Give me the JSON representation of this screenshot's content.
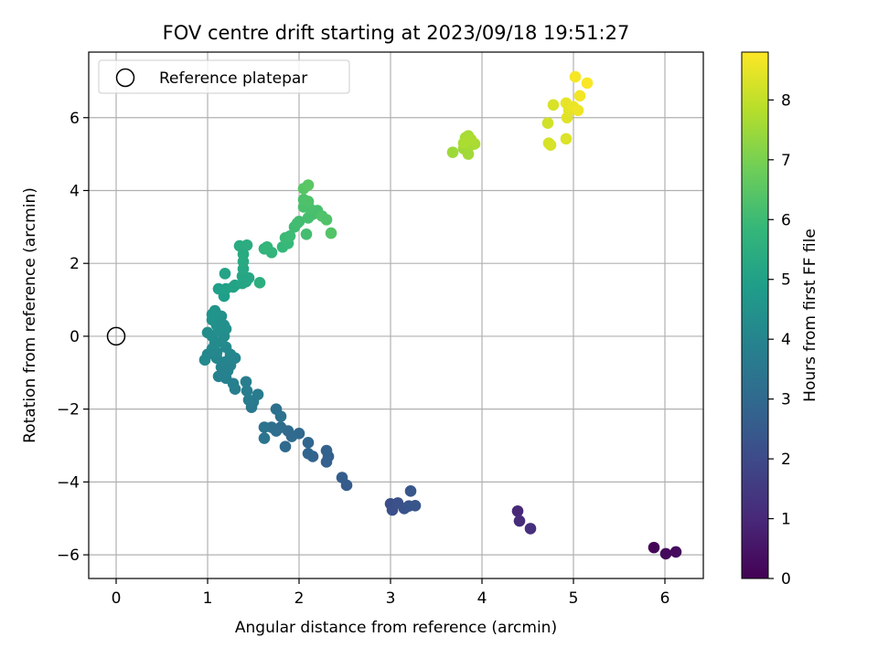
{
  "chart_data": {
    "type": "scatter",
    "title": "FOV centre drift starting at 2023/09/18 19:51:27",
    "xlabel": "Angular distance from reference (arcmin)",
    "ylabel": "Rotation from reference (arcmin)",
    "xlim": [
      -0.3,
      6.42
    ],
    "ylim": [
      -6.65,
      7.8
    ],
    "xticks": [
      0,
      1,
      2,
      3,
      4,
      5,
      6
    ],
    "yticks": [
      -6,
      -4,
      -2,
      0,
      2,
      4,
      6
    ],
    "grid": true,
    "legend": {
      "label": "Reference platepar",
      "placement": "top-left"
    },
    "reference_point": {
      "x": 0,
      "y": 0
    },
    "colorbar": {
      "label": "Hours from first FF file",
      "range": [
        0,
        8.8
      ],
      "ticks": [
        0,
        1,
        2,
        3,
        4,
        5,
        6,
        7,
        8
      ],
      "colormap": "viridis",
      "colors": [
        "#440154",
        "#482878",
        "#3e4989",
        "#31688e",
        "#26828e",
        "#1f9e89",
        "#35b779",
        "#6ece58",
        "#b5de2b",
        "#fde725"
      ]
    },
    "points": [
      {
        "x": 5.88,
        "y": -5.8,
        "c": 0.1
      },
      {
        "x": 6.01,
        "y": -5.97,
        "c": 0.2
      },
      {
        "x": 6.12,
        "y": -5.92,
        "c": 0.25
      },
      {
        "x": 4.39,
        "y": -4.8,
        "c": 1.0
      },
      {
        "x": 4.41,
        "y": -5.07,
        "c": 1.1
      },
      {
        "x": 4.53,
        "y": -5.28,
        "c": 1.2
      },
      {
        "x": 3.0,
        "y": -4.6,
        "c": 2.1
      },
      {
        "x": 3.02,
        "y": -4.77,
        "c": 2.15
      },
      {
        "x": 3.08,
        "y": -4.58,
        "c": 2.2
      },
      {
        "x": 3.15,
        "y": -4.73,
        "c": 2.25
      },
      {
        "x": 3.2,
        "y": -4.66,
        "c": 2.3
      },
      {
        "x": 3.27,
        "y": -4.65,
        "c": 2.35
      },
      {
        "x": 3.22,
        "y": -4.25,
        "c": 2.4
      },
      {
        "x": 2.52,
        "y": -4.09,
        "c": 2.55
      },
      {
        "x": 2.47,
        "y": -3.88,
        "c": 2.6
      },
      {
        "x": 2.3,
        "y": -3.45,
        "c": 2.7
      },
      {
        "x": 2.32,
        "y": -3.3,
        "c": 2.72
      },
      {
        "x": 2.3,
        "y": -3.14,
        "c": 2.75
      },
      {
        "x": 2.15,
        "y": -3.3,
        "c": 2.8
      },
      {
        "x": 2.1,
        "y": -3.22,
        "c": 2.85
      },
      {
        "x": 2.1,
        "y": -2.92,
        "c": 2.9
      },
      {
        "x": 2.0,
        "y": -2.67,
        "c": 2.95
      },
      {
        "x": 1.92,
        "y": -2.75,
        "c": 3.0
      },
      {
        "x": 1.85,
        "y": -3.03,
        "c": 3.02
      },
      {
        "x": 1.88,
        "y": -2.6,
        "c": 3.05
      },
      {
        "x": 1.8,
        "y": -2.5,
        "c": 3.1
      },
      {
        "x": 1.75,
        "y": -2.6,
        "c": 3.15
      },
      {
        "x": 1.7,
        "y": -2.5,
        "c": 3.2
      },
      {
        "x": 1.75,
        "y": -2.0,
        "c": 3.25
      },
      {
        "x": 1.8,
        "y": -2.2,
        "c": 3.3
      },
      {
        "x": 1.62,
        "y": -2.5,
        "c": 3.35
      },
      {
        "x": 1.62,
        "y": -2.8,
        "c": 3.4
      },
      {
        "x": 1.48,
        "y": -1.95,
        "c": 3.55
      },
      {
        "x": 1.5,
        "y": -1.8,
        "c": 3.6
      },
      {
        "x": 1.55,
        "y": -1.6,
        "c": 3.65
      },
      {
        "x": 1.45,
        "y": -1.75,
        "c": 3.7
      },
      {
        "x": 1.43,
        "y": -1.5,
        "c": 3.72
      },
      {
        "x": 1.42,
        "y": -1.25,
        "c": 3.75
      },
      {
        "x": 1.3,
        "y": -1.45,
        "c": 3.8
      },
      {
        "x": 1.28,
        "y": -1.3,
        "c": 3.82
      },
      {
        "x": 1.2,
        "y": -1.15,
        "c": 3.85
      },
      {
        "x": 1.12,
        "y": -1.1,
        "c": 3.88
      },
      {
        "x": 1.22,
        "y": -0.95,
        "c": 3.9
      },
      {
        "x": 1.15,
        "y": -0.85,
        "c": 3.92
      },
      {
        "x": 1.25,
        "y": -0.8,
        "c": 3.95
      },
      {
        "x": 1.2,
        "y": -0.7,
        "c": 3.97
      },
      {
        "x": 1.3,
        "y": -0.6,
        "c": 4.0
      },
      {
        "x": 1.1,
        "y": -0.6,
        "c": 4.02
      },
      {
        "x": 1.25,
        "y": -0.5,
        "c": 4.05
      },
      {
        "x": 1.1,
        "y": -0.45,
        "c": 4.07
      },
      {
        "x": 1.0,
        "y": -0.5,
        "c": 4.1
      },
      {
        "x": 1.05,
        "y": -0.35,
        "c": 4.12
      },
      {
        "x": 1.2,
        "y": -0.3,
        "c": 4.15
      },
      {
        "x": 0.97,
        "y": -0.65,
        "c": 4.17
      },
      {
        "x": 1.08,
        "y": -0.2,
        "c": 4.2
      },
      {
        "x": 1.15,
        "y": -0.15,
        "c": 4.22
      },
      {
        "x": 1.18,
        "y": 0.0,
        "c": 4.25
      },
      {
        "x": 1.05,
        "y": 0.0,
        "c": 4.27
      },
      {
        "x": 1.0,
        "y": 0.1,
        "c": 4.3
      },
      {
        "x": 1.12,
        "y": 0.15,
        "c": 4.32
      },
      {
        "x": 1.2,
        "y": 0.2,
        "c": 4.35
      },
      {
        "x": 1.1,
        "y": 0.3,
        "c": 4.37
      },
      {
        "x": 1.18,
        "y": 0.3,
        "c": 4.4
      },
      {
        "x": 1.05,
        "y": 0.45,
        "c": 4.42
      },
      {
        "x": 1.15,
        "y": 0.55,
        "c": 4.45
      },
      {
        "x": 1.08,
        "y": 0.7,
        "c": 4.5
      },
      {
        "x": 1.1,
        "y": 0.6,
        "c": 4.52
      },
      {
        "x": 1.05,
        "y": 0.6,
        "c": 4.55
      },
      {
        "x": 1.18,
        "y": 1.1,
        "c": 4.9
      },
      {
        "x": 1.12,
        "y": 1.3,
        "c": 4.95
      },
      {
        "x": 1.2,
        "y": 1.3,
        "c": 5.0
      },
      {
        "x": 1.28,
        "y": 1.35,
        "c": 5.05
      },
      {
        "x": 1.3,
        "y": 1.4,
        "c": 5.08
      },
      {
        "x": 1.19,
        "y": 1.72,
        "c": 5.1
      },
      {
        "x": 1.38,
        "y": 1.45,
        "c": 5.15
      },
      {
        "x": 1.42,
        "y": 1.5,
        "c": 5.18
      },
      {
        "x": 1.38,
        "y": 1.65,
        "c": 5.2
      },
      {
        "x": 1.45,
        "y": 1.6,
        "c": 5.22
      },
      {
        "x": 1.39,
        "y": 1.85,
        "c": 5.25
      },
      {
        "x": 1.39,
        "y": 2.05,
        "c": 5.3
      },
      {
        "x": 1.39,
        "y": 2.25,
        "c": 5.35
      },
      {
        "x": 1.35,
        "y": 2.48,
        "c": 5.4
      },
      {
        "x": 1.43,
        "y": 2.5,
        "c": 5.45
      },
      {
        "x": 1.57,
        "y": 1.47,
        "c": 5.5
      },
      {
        "x": 1.62,
        "y": 2.4,
        "c": 5.7
      },
      {
        "x": 1.7,
        "y": 2.3,
        "c": 5.75
      },
      {
        "x": 1.65,
        "y": 2.45,
        "c": 5.8
      },
      {
        "x": 1.82,
        "y": 2.45,
        "c": 5.85
      },
      {
        "x": 1.88,
        "y": 2.55,
        "c": 5.9
      },
      {
        "x": 1.85,
        "y": 2.7,
        "c": 5.95
      },
      {
        "x": 1.9,
        "y": 2.75,
        "c": 6.0
      },
      {
        "x": 1.95,
        "y": 3.0,
        "c": 6.05
      },
      {
        "x": 1.98,
        "y": 3.1,
        "c": 6.08
      },
      {
        "x": 2.0,
        "y": 3.15,
        "c": 6.1
      },
      {
        "x": 2.08,
        "y": 2.8,
        "c": 6.12
      },
      {
        "x": 2.1,
        "y": 3.25,
        "c": 6.15
      },
      {
        "x": 2.15,
        "y": 3.35,
        "c": 6.18
      },
      {
        "x": 2.2,
        "y": 3.45,
        "c": 6.2
      },
      {
        "x": 2.12,
        "y": 3.5,
        "c": 6.22
      },
      {
        "x": 2.05,
        "y": 3.55,
        "c": 6.25
      },
      {
        "x": 2.05,
        "y": 3.75,
        "c": 6.28
      },
      {
        "x": 2.1,
        "y": 3.7,
        "c": 6.3
      },
      {
        "x": 2.25,
        "y": 3.3,
        "c": 6.32
      },
      {
        "x": 2.3,
        "y": 3.2,
        "c": 6.35
      },
      {
        "x": 2.35,
        "y": 2.83,
        "c": 6.38
      },
      {
        "x": 2.05,
        "y": 4.05,
        "c": 6.45
      },
      {
        "x": 2.1,
        "y": 4.15,
        "c": 6.5
      },
      {
        "x": 3.68,
        "y": 5.05,
        "c": 7.5
      },
      {
        "x": 3.8,
        "y": 5.15,
        "c": 7.52
      },
      {
        "x": 3.85,
        "y": 5.0,
        "c": 7.55
      },
      {
        "x": 3.88,
        "y": 5.25,
        "c": 7.58
      },
      {
        "x": 3.82,
        "y": 5.45,
        "c": 7.6
      },
      {
        "x": 3.85,
        "y": 5.5,
        "c": 7.62
      },
      {
        "x": 3.92,
        "y": 5.28,
        "c": 7.65
      },
      {
        "x": 3.8,
        "y": 5.3,
        "c": 7.67
      },
      {
        "x": 3.88,
        "y": 5.4,
        "c": 7.7
      },
      {
        "x": 4.72,
        "y": 5.85,
        "c": 8.2
      },
      {
        "x": 4.73,
        "y": 5.3,
        "c": 8.25
      },
      {
        "x": 4.75,
        "y": 5.25,
        "c": 8.28
      },
      {
        "x": 4.78,
        "y": 6.35,
        "c": 8.3
      },
      {
        "x": 4.92,
        "y": 5.42,
        "c": 8.35
      },
      {
        "x": 4.93,
        "y": 6.0,
        "c": 8.4
      },
      {
        "x": 4.95,
        "y": 6.2,
        "c": 8.45
      },
      {
        "x": 4.92,
        "y": 6.4,
        "c": 8.5
      },
      {
        "x": 5.0,
        "y": 6.3,
        "c": 8.55
      },
      {
        "x": 5.05,
        "y": 6.2,
        "c": 8.6
      },
      {
        "x": 5.07,
        "y": 6.6,
        "c": 8.65
      },
      {
        "x": 5.02,
        "y": 7.12,
        "c": 8.7
      },
      {
        "x": 5.15,
        "y": 6.95,
        "c": 8.75
      }
    ]
  }
}
